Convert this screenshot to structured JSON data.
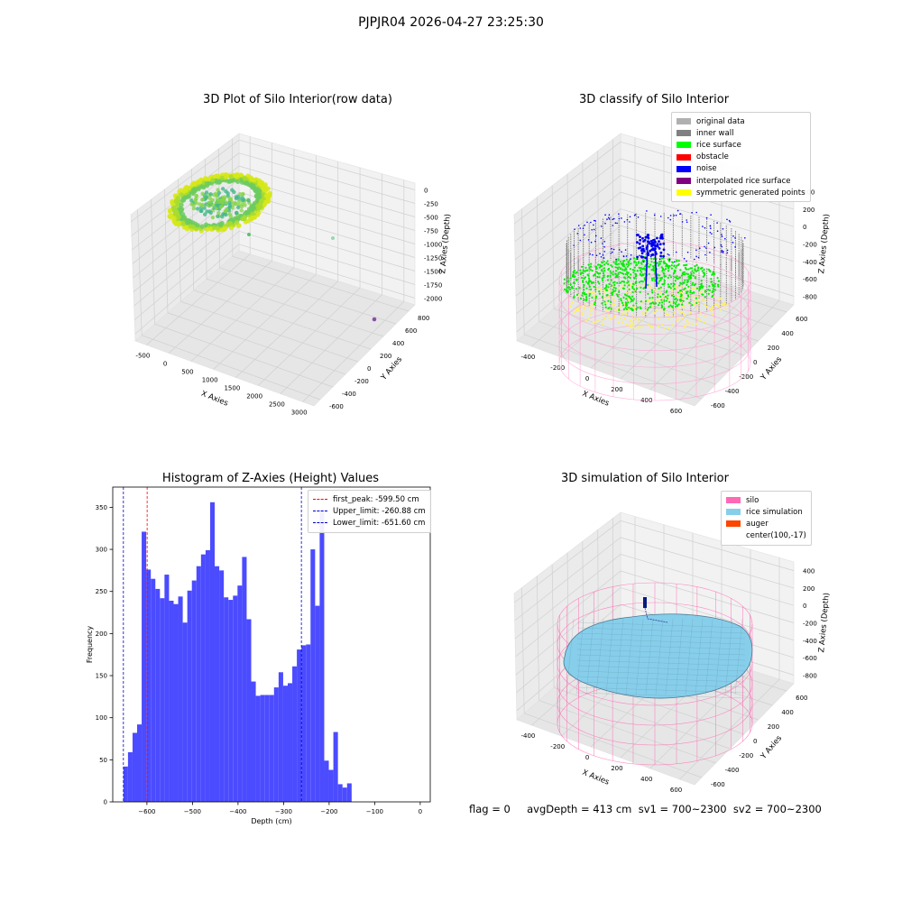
{
  "suptitle": "PJPJR04 2026-04-27 23:25:30",
  "footer": "flag = 0     avgDepth = 413 cm  sv1 = 700~2300  sv2 = 700~2300",
  "colors": {
    "histogram_bar": "#4b4bff",
    "first_peak": "#ff0000",
    "limits": "#0000cc",
    "silo": "#ff69b4",
    "rice_simulation": "#87ceeb",
    "auger": "#ff4500",
    "rice_surface": "#00ff00",
    "noise": "#0000ff",
    "symmetric": "#ffff00"
  },
  "chart_data": [
    {
      "type": "scatter",
      "title": "3D Plot of Silo Interior(row data)",
      "xlabel": "X Axies",
      "ylabel": "Y Axies",
      "zlabel": "Z Axies (Depth)",
      "x_ticks": [
        "-500",
        "0",
        "500",
        "1000",
        "1500",
        "2000",
        "2500",
        "3000"
      ],
      "y_ticks": [
        "-600",
        "-400",
        "-200",
        "0",
        "200",
        "400",
        "600",
        "800"
      ],
      "z_ticks": [
        "0",
        "-250",
        "-500",
        "-750",
        "-1000",
        "-1250",
        "-1500",
        "-1750",
        "-2000"
      ],
      "grid": true
    },
    {
      "type": "scatter",
      "title": "3D classify of Silo Interior",
      "xlabel": "X Axies",
      "ylabel": "Y Axies",
      "zlabel": "Z Axies (Depth)",
      "x_ticks": [
        "-400",
        "-200",
        "0",
        "200",
        "400",
        "600"
      ],
      "y_ticks": [
        "-600",
        "-400",
        "-200",
        "0",
        "200",
        "400",
        "600"
      ],
      "z_ticks": [
        "400",
        "200",
        "0",
        "-200",
        "-400",
        "-600",
        "-800"
      ],
      "legend": [
        {
          "label": "original data",
          "color": "#b0b0b0"
        },
        {
          "label": "inner wall",
          "color": "#808080"
        },
        {
          "label": "rice surface",
          "color": "#00ff00"
        },
        {
          "label": "obstacle",
          "color": "#ff0000"
        },
        {
          "label": "noise",
          "color": "#0000ff"
        },
        {
          "label": "interpolated rice surface",
          "color": "#800080"
        },
        {
          "label": "symmetric generated points",
          "color": "#ffff00"
        }
      ],
      "legend_position": "top-right",
      "grid": true
    },
    {
      "type": "bar",
      "title": "Histogram of Z-Axies (Height) Values",
      "xlabel": "Depth (cm)",
      "ylabel": "Frequency",
      "xlim": [
        -675,
        22
      ],
      "ylim": [
        0,
        374
      ],
      "x_ticks": [
        -600,
        -500,
        -400,
        -300,
        -200,
        -100,
        0
      ],
      "y_ticks": [
        0,
        50,
        100,
        150,
        200,
        250,
        300,
        350
      ],
      "bin_start": -651.6,
      "bin_width": 10.02,
      "values": [
        42,
        59,
        82,
        92,
        321,
        276,
        265,
        253,
        242,
        270,
        239,
        235,
        244,
        213,
        251,
        263,
        280,
        294,
        299,
        356,
        280,
        275,
        243,
        240,
        245,
        257,
        291,
        217,
        143,
        126,
        127,
        127,
        127,
        136,
        154,
        138,
        141,
        161,
        181,
        186,
        187,
        300,
        233,
        347,
        49,
        38,
        83,
        21,
        17,
        22
      ],
      "lines": [
        {
          "label": "first_peak: -599.50 cm",
          "x": -599.5,
          "color": "#ff0000"
        },
        {
          "label": "Upper_limit: -260.88 cm",
          "x": -260.88,
          "color": "#0000cc"
        },
        {
          "label": "Lower_limit: -651.60 cm",
          "x": -651.6,
          "color": "#0000cc"
        }
      ],
      "legend_position": "top-right"
    },
    {
      "type": "scatter",
      "title": "3D simulation of Silo Interior",
      "xlabel": "X Axies",
      "ylabel": "Y Axies",
      "zlabel": "Z Axies (Depth)",
      "x_ticks": [
        "-400",
        "-200",
        "0",
        "200",
        "400",
        "600"
      ],
      "y_ticks": [
        "-600",
        "-400",
        "-200",
        "0",
        "200",
        "400",
        "600"
      ],
      "z_ticks": [
        "400",
        "200",
        "0",
        "-200",
        "-400",
        "-600",
        "-800"
      ],
      "legend": [
        {
          "label": "silo",
          "color": "#ff69b4"
        },
        {
          "label": "rice simulation",
          "color": "#87ceeb"
        },
        {
          "label": "auger",
          "color": "#ff4500"
        },
        {
          "label": "center(100,-17)",
          "color": ""
        }
      ],
      "legend_position": "top-right",
      "grid": true
    }
  ]
}
